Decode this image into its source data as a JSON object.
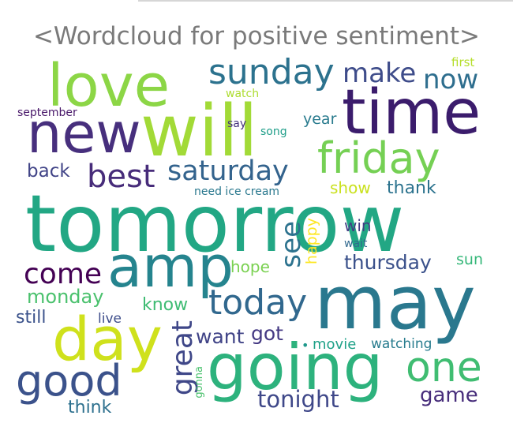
{
  "title": "<Wordcloud for positive sentiment>",
  "words": [
    {
      "text": "tomorrow",
      "color": "#22a784"
    },
    {
      "text": "will",
      "color": "#a2da37"
    },
    {
      "text": "may",
      "color": "#2a788e"
    },
    {
      "text": "time",
      "color": "#3b1c6c"
    },
    {
      "text": "love",
      "color": "#8cd646"
    },
    {
      "text": "new",
      "color": "#472f7d"
    },
    {
      "text": "going",
      "color": "#2db27d"
    },
    {
      "text": "amp",
      "color": "#25848e"
    },
    {
      "text": "day",
      "color": "#cfe11c"
    },
    {
      "text": "friday",
      "color": "#75d054"
    },
    {
      "text": "sunday",
      "color": "#2c728e"
    },
    {
      "text": "good",
      "color": "#3b528b"
    },
    {
      "text": "one",
      "color": "#40bd72"
    },
    {
      "text": "best",
      "color": "#472c7a"
    },
    {
      "text": "saturday",
      "color": "#33638d"
    },
    {
      "text": "today",
      "color": "#31688e"
    },
    {
      "text": "great",
      "color": "#3f4788"
    },
    {
      "text": "make",
      "color": "#3e4c8a"
    },
    {
      "text": "now",
      "color": "#2e6e8e"
    },
    {
      "text": "come",
      "color": "#440154"
    },
    {
      "text": "see",
      "color": "#2c728e"
    },
    {
      "text": "tonight",
      "color": "#3f4889"
    },
    {
      "text": "thursday",
      "color": "#3b518b"
    },
    {
      "text": "game",
      "color": "#472d7b"
    },
    {
      "text": "got",
      "color": "#443983"
    },
    {
      "text": "want",
      "color": "#414487"
    },
    {
      "text": "monday",
      "color": "#4ac16d"
    },
    {
      "text": "know",
      "color": "#3fbc73"
    },
    {
      "text": "back",
      "color": "#414487"
    },
    {
      "text": "show",
      "color": "#cae11f"
    },
    {
      "text": "thank",
      "color": "#2c738e"
    },
    {
      "text": "still",
      "color": "#3b528b"
    },
    {
      "text": "win",
      "color": "#433e85"
    },
    {
      "text": "think",
      "color": "#2d708e"
    },
    {
      "text": "hope",
      "color": "#7ad151"
    },
    {
      "text": "sun",
      "color": "#35b779"
    },
    {
      "text": "year",
      "color": "#297b8e"
    },
    {
      "text": "happy",
      "color": "#fde725"
    },
    {
      "text": "movie",
      "color": "#1fa188"
    },
    {
      "text": "watching",
      "color": "#287c8e"
    },
    {
      "text": "live",
      "color": "#3d4d8a"
    },
    {
      "text": "need ice cream",
      "color": "#2a788e"
    },
    {
      "text": "say",
      "color": "#46327e"
    },
    {
      "text": "song",
      "color": "#1f9e89"
    },
    {
      "text": "watch",
      "color": "#addc30"
    },
    {
      "text": "first",
      "color": "#b5de2b"
    },
    {
      "text": "september",
      "color": "#481769"
    },
    {
      "text": "wait",
      "color": "#31688e"
    },
    {
      "text": "gonna",
      "color": "#4ac16d"
    },
    {
      "text": "•",
      "color": "#1f988b"
    }
  ]
}
